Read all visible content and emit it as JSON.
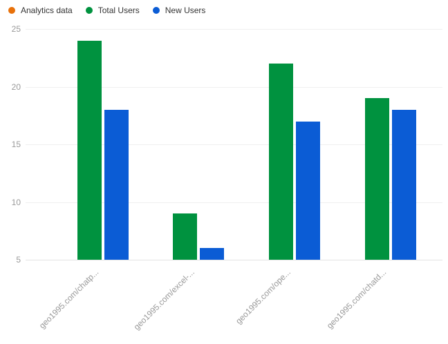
{
  "legend": {
    "items": [
      {
        "label": "Analytics data",
        "color": "#e8710a"
      },
      {
        "label": "Total Users",
        "color": "#00923f"
      },
      {
        "label": "New Users",
        "color": "#0b5cd5"
      }
    ]
  },
  "chart_data": {
    "type": "bar",
    "title": "",
    "xlabel": "",
    "ylabel": "",
    "categories": [
      "geo1995.com/chatp...",
      "geo1995.com/excel-...",
      "geo1995.com/ope...",
      "geo1995.com/chatd..."
    ],
    "series": [
      {
        "name": "Analytics data",
        "color": "#e8710a",
        "values": []
      },
      {
        "name": "Total Users",
        "color": "#00923f",
        "values": [
          24,
          9,
          22,
          19
        ]
      },
      {
        "name": "New Users",
        "color": "#0b5cd5",
        "values": [
          18,
          6,
          17,
          18
        ]
      }
    ],
    "ylim": [
      5,
      25
    ],
    "yticks": [
      5,
      10,
      15,
      20,
      25
    ],
    "grid": true,
    "legend_position": "top-left"
  },
  "colors": {
    "background": "#ffffff",
    "grid_line": "#efefef",
    "axis_line": "#e2e2e2",
    "axis_text": "#999999",
    "legend_text": "#333333"
  }
}
